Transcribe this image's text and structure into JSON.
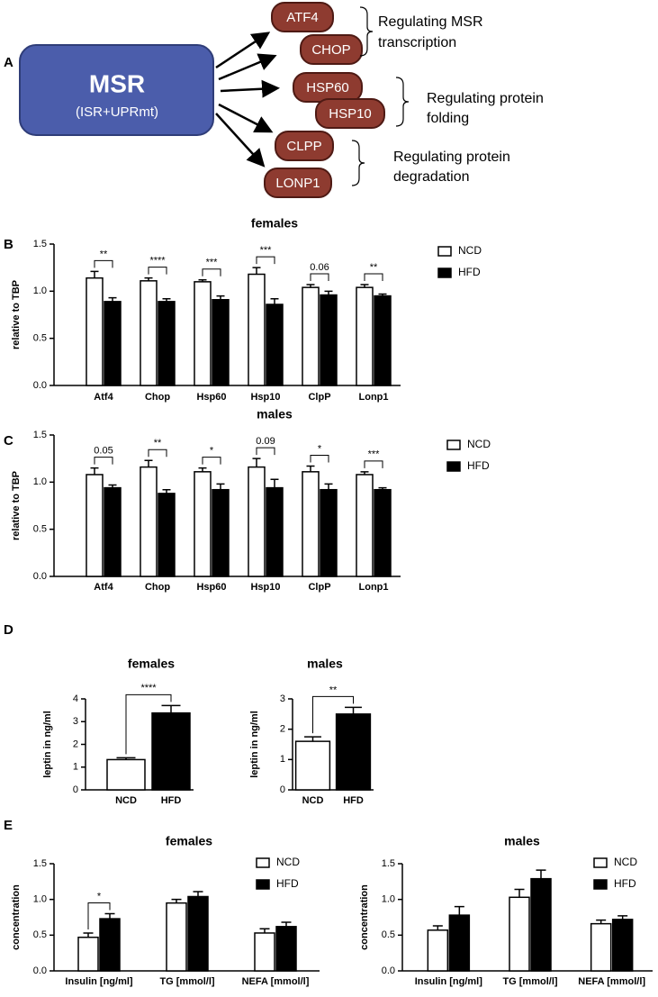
{
  "panel_labels": [
    "A",
    "B",
    "C",
    "D",
    "E"
  ],
  "diagram": {
    "center_title": "MSR",
    "center_subtitle": "(ISR+UPRmt)",
    "nodes": [
      "ATF4",
      "CHOP",
      "HSP60",
      "HSP10",
      "CLPP",
      "LONP1"
    ],
    "groups": [
      [
        "Regulating MSR",
        "transcription"
      ],
      [
        "Regulating protein",
        "folding"
      ],
      [
        "Regulating protein",
        "degradation"
      ]
    ]
  },
  "chart_data": [
    {
      "type": "bar",
      "title": "females",
      "y_label": "relative to TBP",
      "categories": [
        "Atf4",
        "Chop",
        "Hsp60",
        "Hsp10",
        "ClpP",
        "Lonp1"
      ],
      "series": [
        {
          "name": "NCD",
          "color": "#ffffff",
          "values": [
            1.14,
            1.11,
            1.1,
            1.18,
            1.04,
            1.04
          ],
          "errors": [
            0.07,
            0.03,
            0.02,
            0.07,
            0.03,
            0.03
          ]
        },
        {
          "name": "HFD",
          "color": "#000000",
          "values": [
            0.89,
            0.89,
            0.91,
            0.86,
            0.96,
            0.95
          ],
          "errors": [
            0.04,
            0.03,
            0.04,
            0.06,
            0.04,
            0.02
          ]
        }
      ],
      "significance": [
        "**",
        "****",
        "***",
        "***",
        "0.06",
        "**"
      ],
      "ylim": [
        0,
        1.5
      ],
      "yticks": [
        {
          "value": 0,
          "label": "0.0"
        },
        {
          "value": 0.5,
          "label": "0.5"
        },
        {
          "value": 1,
          "label": "1.0"
        },
        {
          "value": 1.5,
          "label": "1.5"
        }
      ]
    },
    {
      "type": "bar",
      "title": "males",
      "y_label": "relative to TBP",
      "categories": [
        "Atf4",
        "Chop",
        "Hsp60",
        "Hsp10",
        "ClpP",
        "Lonp1"
      ],
      "series": [
        {
          "name": "NCD",
          "color": "#ffffff",
          "values": [
            1.08,
            1.16,
            1.11,
            1.16,
            1.11,
            1.08
          ],
          "errors": [
            0.07,
            0.07,
            0.04,
            0.09,
            0.06,
            0.03
          ]
        },
        {
          "name": "HFD",
          "color": "#000000",
          "values": [
            0.94,
            0.88,
            0.92,
            0.94,
            0.92,
            0.92
          ],
          "errors": [
            0.03,
            0.04,
            0.06,
            0.09,
            0.06,
            0.02
          ]
        }
      ],
      "significance": [
        "0.05",
        "**",
        "*",
        "0.09",
        "*",
        "***"
      ],
      "ylim": [
        0,
        1.5
      ],
      "yticks": [
        {
          "value": 0,
          "label": "0.0"
        },
        {
          "value": 0.5,
          "label": "0.5"
        },
        {
          "value": 1,
          "label": "1.0"
        },
        {
          "value": 1.5,
          "label": "1.5"
        }
      ]
    },
    {
      "type": "bar",
      "title": "females",
      "y_label": "leptin in ng/ml",
      "categories": [
        "NCD",
        "HFD"
      ],
      "values": [
        1.33,
        3.38
      ],
      "errors": [
        0.08,
        0.33
      ],
      "colors": [
        "#ffffff",
        "#000000"
      ],
      "significance": "****",
      "ylim": [
        0,
        4
      ],
      "yticks": [
        0,
        1,
        2,
        3,
        4
      ]
    },
    {
      "type": "bar",
      "title": "males",
      "y_label": "leptin in ng/ml",
      "categories": [
        "NCD",
        "HFD"
      ],
      "values": [
        1.6,
        2.5
      ],
      "errors": [
        0.15,
        0.22
      ],
      "colors": [
        "#ffffff",
        "#000000"
      ],
      "significance": "**",
      "ylim": [
        0,
        3
      ],
      "yticks": [
        0,
        1,
        2,
        3
      ]
    },
    {
      "type": "bar",
      "title": "females",
      "y_label": "concentration",
      "categories": [
        "Insulin [ng/ml]",
        "TG [mmol/l]",
        "NEFA [mmol/l]"
      ],
      "series": [
        {
          "name": "NCD",
          "color": "#ffffff",
          "values": [
            0.47,
            0.95,
            0.53
          ],
          "errors": [
            0.06,
            0.05,
            0.06
          ]
        },
        {
          "name": "HFD",
          "color": "#000000",
          "values": [
            0.73,
            1.04,
            0.62
          ],
          "errors": [
            0.07,
            0.07,
            0.06
          ]
        }
      ],
      "significance": [
        "*",
        null,
        null
      ],
      "ylim": [
        0,
        1.5
      ],
      "yticks": [
        {
          "value": 0,
          "label": "0.0"
        },
        {
          "value": 0.5,
          "label": "0.5"
        },
        {
          "value": 1,
          "label": "1.0"
        },
        {
          "value": 1.5,
          "label": "1.5"
        }
      ]
    },
    {
      "type": "bar",
      "title": "males",
      "y_label": "concentration",
      "categories": [
        "Insulin [ng/ml]",
        "TG [mmol/l]",
        "NEFA [mmol/l]"
      ],
      "series": [
        {
          "name": "NCD",
          "color": "#ffffff",
          "values": [
            0.57,
            1.03,
            0.66
          ],
          "errors": [
            0.06,
            0.11,
            0.05
          ]
        },
        {
          "name": "HFD",
          "color": "#000000",
          "values": [
            0.78,
            1.29,
            0.72
          ],
          "errors": [
            0.12,
            0.12,
            0.05
          ]
        }
      ],
      "ylim": [
        0,
        1.5
      ],
      "yticks": [
        {
          "value": 0,
          "label": "0.0"
        },
        {
          "value": 0.5,
          "label": "0.5"
        },
        {
          "value": 1,
          "label": "1.0"
        },
        {
          "value": 1.5,
          "label": "1.5"
        }
      ]
    }
  ]
}
